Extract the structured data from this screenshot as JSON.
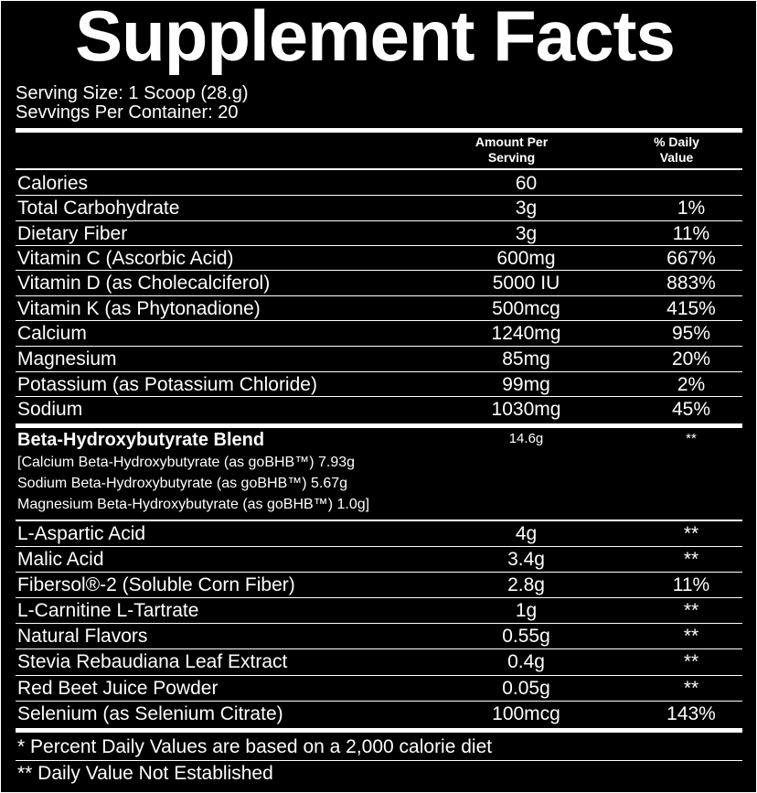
{
  "title": "Supplement Facts",
  "serving_size": "Serving Size: 1 Scoop (28.g)",
  "servings_per_container": "Sevvings Per Container: 20",
  "headers": {
    "amount_line1": "Amount Per",
    "amount_line2": "Serving",
    "dv_line1": "% Daily",
    "dv_line2": "Value"
  },
  "nutrients": [
    {
      "name": "Calories",
      "amount": "60",
      "dv": ""
    },
    {
      "name": "Total Carbohydrate",
      "amount": "3g",
      "dv": "1%"
    },
    {
      "name": "Dietary Fiber",
      "amount": "3g",
      "dv": "11%"
    },
    {
      "name": "Vitamin C (Ascorbic Acid)",
      "amount": "600mg",
      "dv": "667%"
    },
    {
      "name": "Vitamin D (as Cholecalciferol)",
      "amount": "5000 IU",
      "dv": "883%"
    },
    {
      "name": "Vitamin K (as Phytonadione)",
      "amount": "500mcg",
      "dv": "415%"
    },
    {
      "name": "Calcium",
      "amount": "1240mg",
      "dv": "95%"
    },
    {
      "name": "Magnesium",
      "amount": "85mg",
      "dv": "20%"
    },
    {
      "name": "Potassium (as Potassium Chloride)",
      "amount": "99mg",
      "dv": "2%"
    },
    {
      "name": "Sodium",
      "amount": "1030mg",
      "dv": "45%"
    }
  ],
  "blend": {
    "name": "Beta-Hydroxybutyrate Blend",
    "amount": "14.6g",
    "dv": "**",
    "line1": "[Calcium Beta-Hydroxybutyrate (as goBHB™) 7.93g",
    "line2": "Sodium Beta-Hydroxybutyrate (as goBHB™) 5.67g",
    "line3": "Magnesium Beta-Hydroxybutyrate (as goBHB™) 1.0g]"
  },
  "other": [
    {
      "name": "L-Aspartic Acid",
      "amount": "4g",
      "dv": "**"
    },
    {
      "name": "Malic Acid",
      "amount": "3.4g",
      "dv": "**"
    },
    {
      "name": "Fibersol®-2 (Soluble Corn Fiber)",
      "amount": "2.8g",
      "dv": "11%"
    },
    {
      "name": "L-Carnitine L-Tartrate",
      "amount": "1g",
      "dv": "**"
    },
    {
      "name": "Natural Flavors",
      "amount": "0.55g",
      "dv": "**"
    },
    {
      "name": "Stevia Rebaudiana Leaf Extract",
      "amount": "0.4g",
      "dv": "**"
    },
    {
      "name": "Red Beet Juice Powder",
      "amount": "0.05g",
      "dv": "**"
    },
    {
      "name": "Selenium (as Selenium Citrate)",
      "amount": "100mcg",
      "dv": "143%"
    }
  ],
  "footnotes": {
    "dv_note": "* Percent Daily Values are based on a 2,000 calorie diet",
    "not_established": "** Daily Value Not Established"
  }
}
